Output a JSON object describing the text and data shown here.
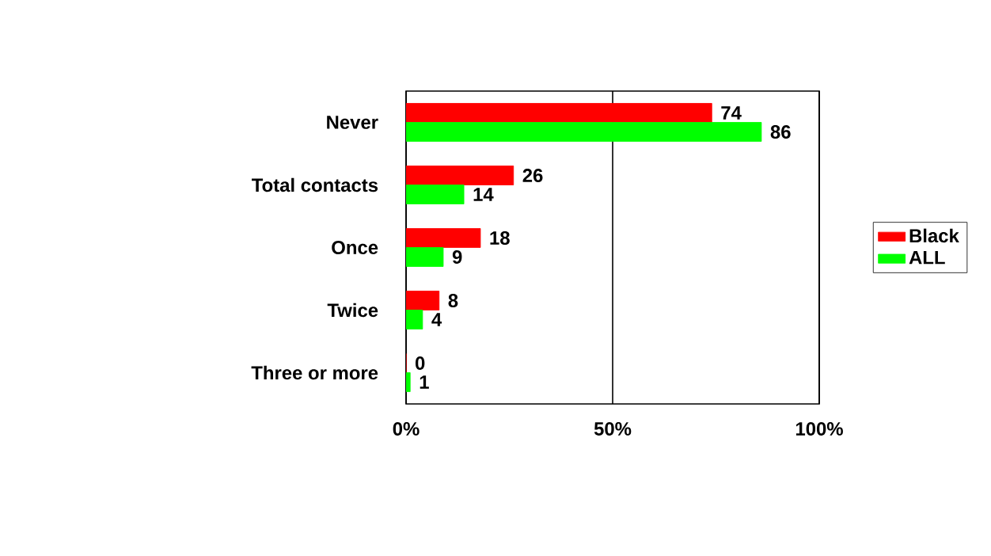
{
  "chart_data": {
    "type": "bar",
    "orientation": "horizontal",
    "categories": [
      "Never",
      "Total contacts",
      "Once",
      "Twice",
      "Three or more"
    ],
    "series": [
      {
        "name": "Black",
        "color": "#ff0000",
        "values": [
          74,
          26,
          18,
          8,
          0
        ]
      },
      {
        "name": "ALL",
        "color": "#00ff00",
        "values": [
          86,
          14,
          9,
          4,
          1
        ]
      }
    ],
    "xlim": [
      0,
      100
    ],
    "xticks": [
      {
        "value": 0,
        "label": "0%"
      },
      {
        "value": 50,
        "label": "50%"
      },
      {
        "value": 100,
        "label": "100%"
      }
    ],
    "grid": "x",
    "legend": "right",
    "data_labels": true
  }
}
